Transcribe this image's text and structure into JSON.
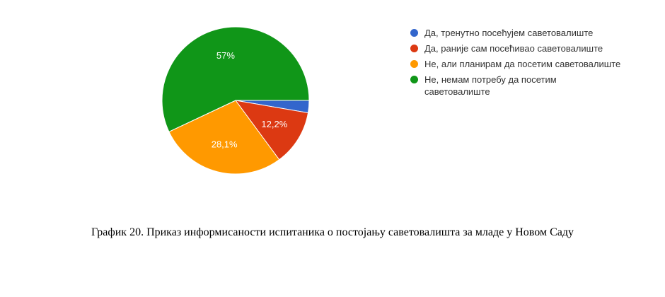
{
  "chart_data": {
    "type": "pie",
    "categories": [
      "Да, тренутно посећујем саветовалиште",
      "Да, раније сам посећивао саветовалиште",
      "Не, али планирам да посетим саветовалиште",
      "Не, немам потребу да посетим саветовалиште"
    ],
    "values": [
      2.7,
      12.2,
      28.1,
      57.0
    ],
    "value_labels": [
      "",
      "12,2%",
      "28,1%",
      "57%"
    ],
    "colors": [
      "#3366cc",
      "#dc3912",
      "#ff9900",
      "#109618"
    ],
    "legend_position": "right"
  },
  "caption": "График 20. Приказ информисаности испитаника о постојању саветовалишта за младе у Новом Саду"
}
